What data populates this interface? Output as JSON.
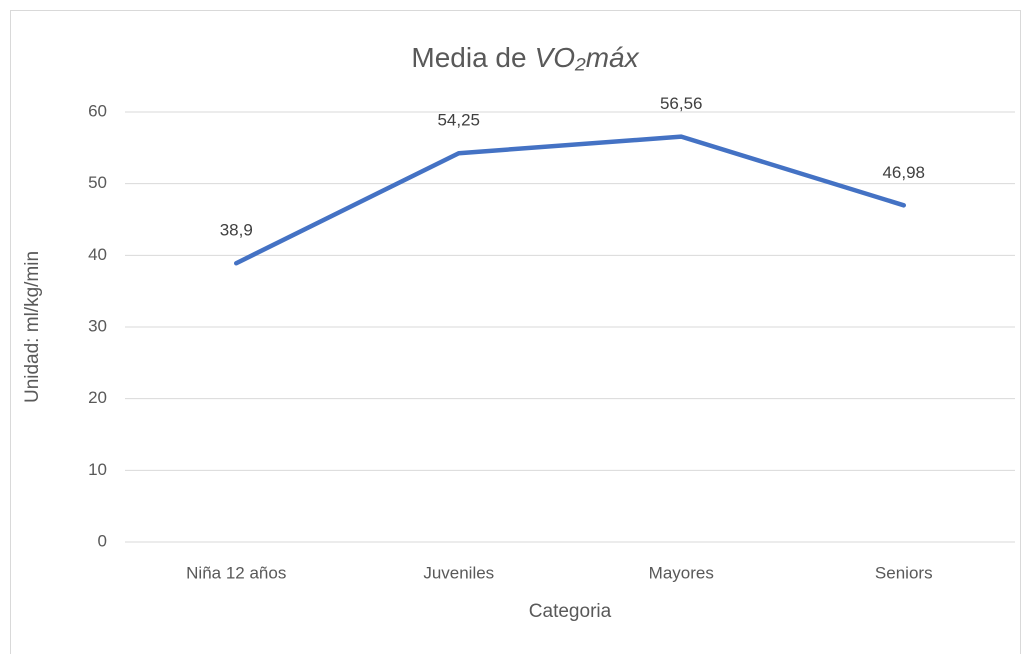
{
  "chart_data": {
    "type": "line",
    "title": [
      "Media de",
      "VO₂máx"
    ],
    "x_label": "Categoria",
    "y_label": "Unidad: ml/kg/min",
    "categories": [
      "Niña 12 años",
      "Juveniles",
      "Mayores",
      "Seniors"
    ],
    "series": [
      {
        "name": "Media de VO₂máx",
        "color": "#4472c4",
        "values": [
          38.9,
          54.25,
          56.56,
          46.98
        ],
        "value_labels": [
          "38,9",
          "54,25",
          "56,56",
          "46,98"
        ]
      }
    ],
    "ylim": [
      0,
      60
    ],
    "yticks": [
      0,
      10,
      20,
      30,
      40,
      50,
      60
    ],
    "grid": true,
    "legend": false
  }
}
